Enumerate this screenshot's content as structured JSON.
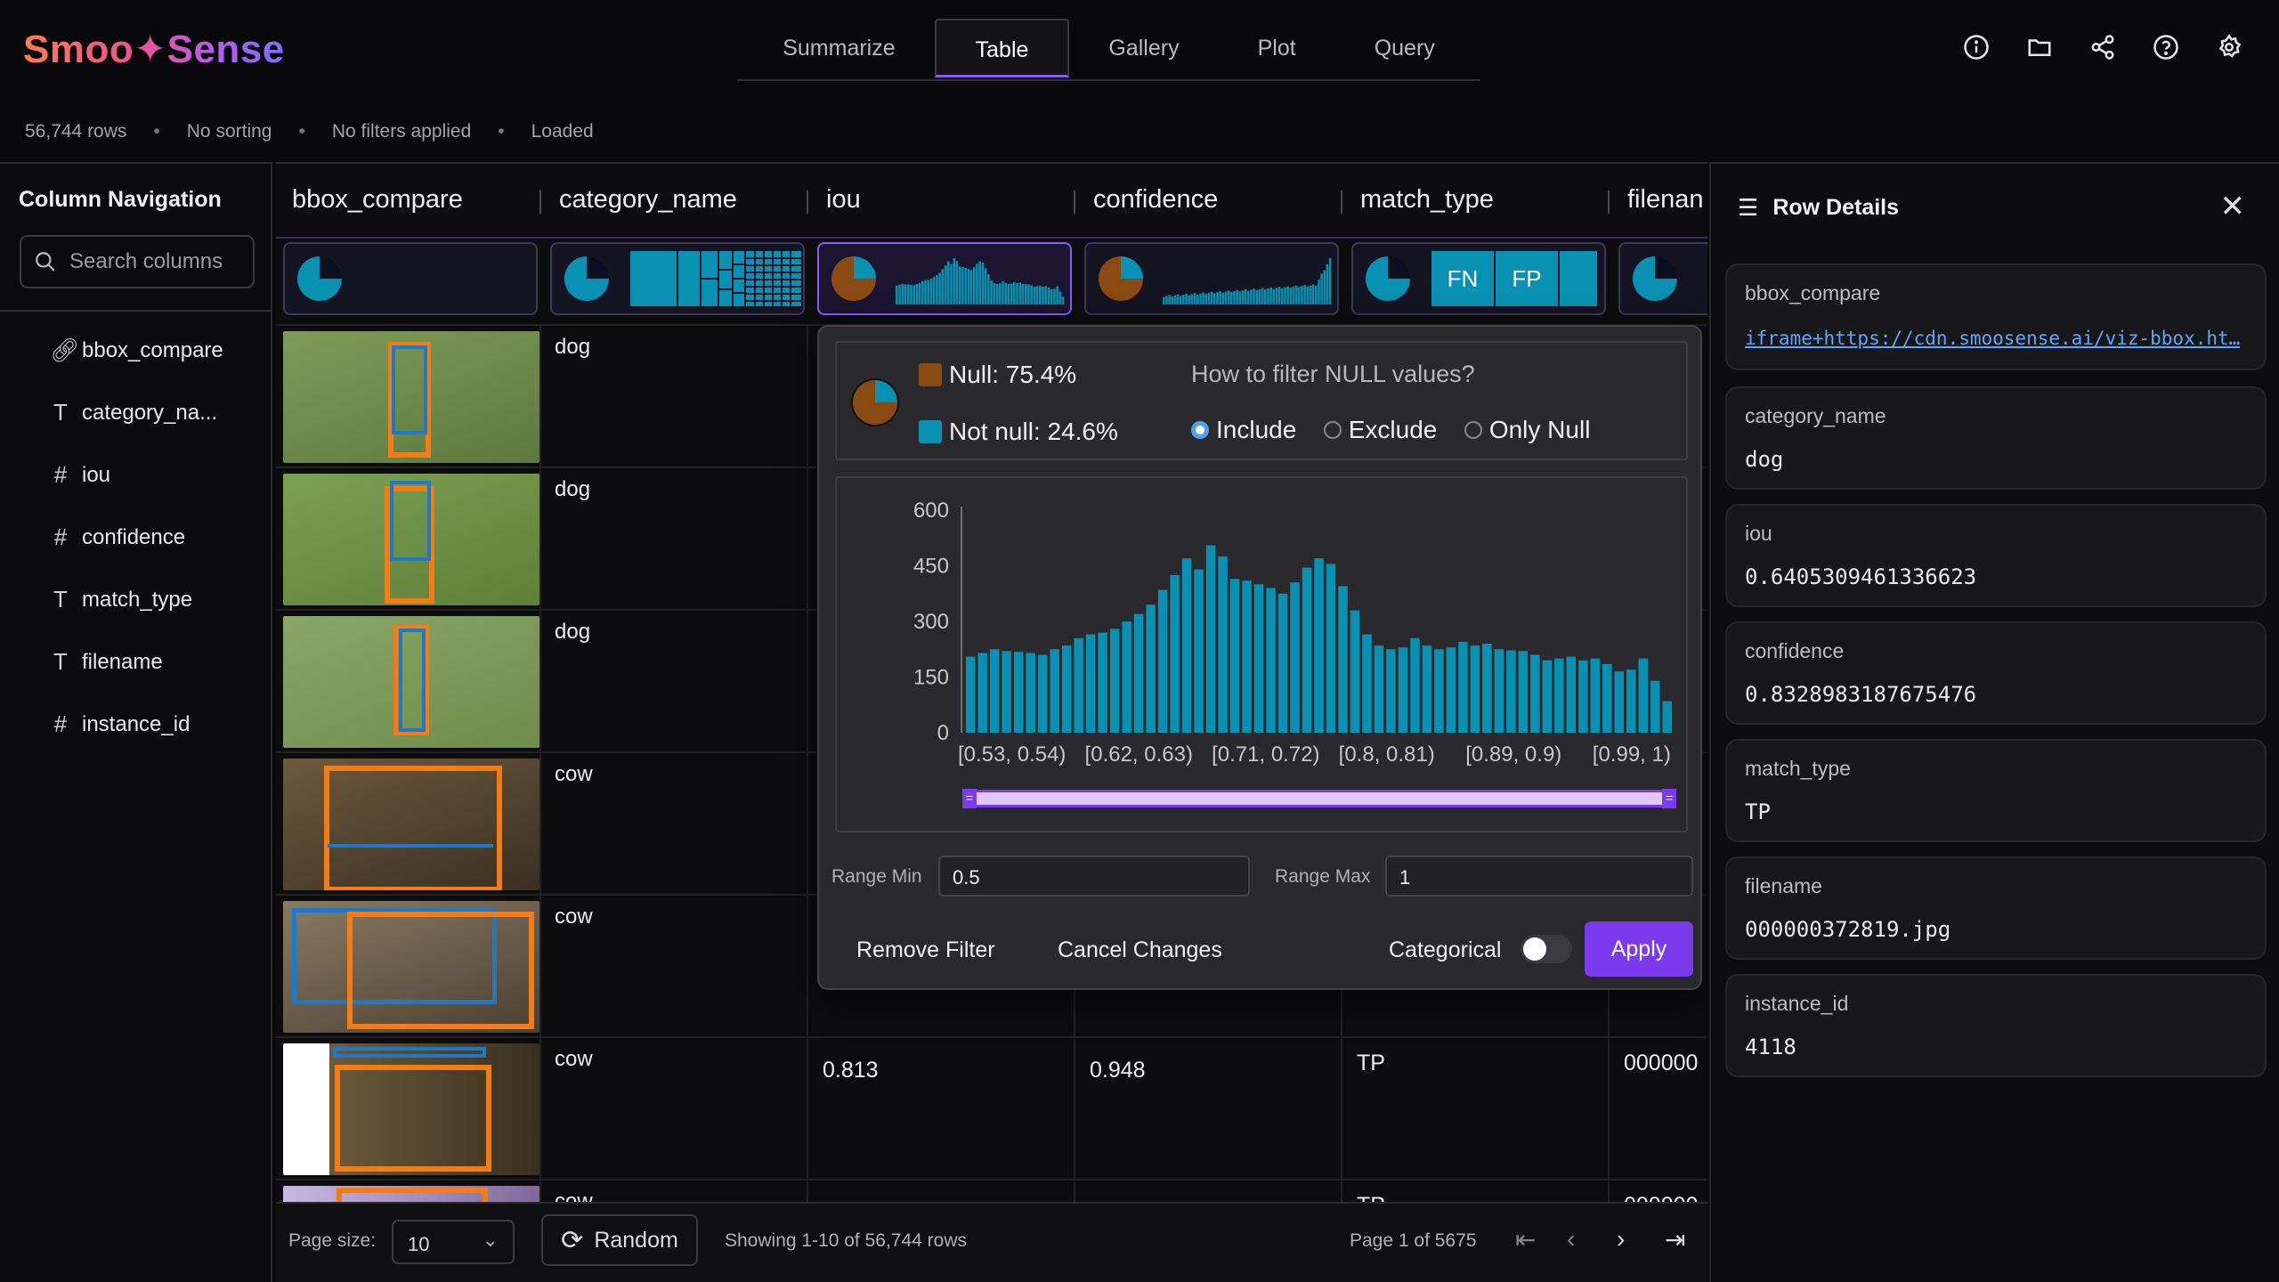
{
  "app": {
    "logo": "Smoo✦Sense"
  },
  "nav": {
    "tabs": [
      {
        "label": "Summarize"
      },
      {
        "label": "Table"
      },
      {
        "label": "Gallery"
      },
      {
        "label": "Plot"
      },
      {
        "label": "Query"
      }
    ],
    "active": "Table"
  },
  "status": {
    "rows": "56,744 rows",
    "sorting": "No sorting",
    "filters": "No filters applied",
    "state": "Loaded"
  },
  "leftnav": {
    "title": "Column Navigation",
    "search_placeholder": "Search columns",
    "columns": [
      {
        "label": "bbox_compare",
        "icon": "link-icon"
      },
      {
        "label": "category_na...",
        "icon": "text-type-icon"
      },
      {
        "label": "iou",
        "icon": "number-type-icon"
      },
      {
        "label": "confidence",
        "icon": "number-type-icon"
      },
      {
        "label": "match_type",
        "icon": "text-type-icon"
      },
      {
        "label": "filename",
        "icon": "text-type-icon"
      },
      {
        "label": "instance_id",
        "icon": "number-type-icon"
      }
    ]
  },
  "table": {
    "headers": [
      "bbox_compare",
      "category_name",
      "iou",
      "confidence",
      "match_type",
      "filenan"
    ],
    "summary_labels": {
      "fn": "FN",
      "fp": "FP"
    },
    "rows": [
      {
        "category": "dog",
        "iou": "",
        "confidence": "",
        "match": "",
        "filename": ""
      },
      {
        "category": "dog",
        "iou": "",
        "confidence": "",
        "match": "",
        "filename": ""
      },
      {
        "category": "dog",
        "iou": "",
        "confidence": "",
        "match": "",
        "filename": ""
      },
      {
        "category": "cow",
        "iou": "",
        "confidence": "",
        "match": "",
        "filename": ""
      },
      {
        "category": "cow",
        "iou": "",
        "confidence": "",
        "match": "",
        "filename": ""
      },
      {
        "category": "cow",
        "iou": "0.813",
        "confidence": "0.948",
        "match": "TP",
        "filename": "000000"
      },
      {
        "category": "cow",
        "iou": "",
        "confidence": "",
        "match": "TP",
        "filename": "000000"
      }
    ]
  },
  "filter_popup": {
    "null_label": "Null: 75.4%",
    "notnull_label": "Not null: 24.6%",
    "null_fraction": 0.754,
    "question": "How to filter NULL values?",
    "options": [
      "Include",
      "Exclude",
      "Only Null"
    ],
    "selected_option": "Include",
    "colors": {
      "null": "#8a4b12",
      "notnull": "#0891b2",
      "bar": "#0891b2",
      "range": "#d8b4fe",
      "range_border": "#7c3aed"
    },
    "chart_data": {
      "type": "bar",
      "y_ticks": [
        "600",
        "450",
        "300",
        "150",
        "0"
      ],
      "ylim": [
        0,
        600
      ],
      "x_tick_labels": [
        "[0.53, 0.54)",
        "[0.62, 0.63)",
        "[0.71, 0.72)",
        "[0.8, 0.81)",
        "[0.89, 0.9)",
        "[0.99, 1)"
      ],
      "values": [
        205,
        215,
        225,
        220,
        218,
        215,
        210,
        225,
        235,
        255,
        265,
        270,
        280,
        300,
        320,
        345,
        385,
        425,
        470,
        440,
        505,
        475,
        415,
        410,
        400,
        390,
        375,
        405,
        445,
        470,
        455,
        395,
        330,
        265,
        235,
        225,
        230,
        255,
        235,
        225,
        230,
        245,
        235,
        240,
        225,
        222,
        220,
        210,
        195,
        200,
        205,
        195,
        200,
        185,
        165,
        170,
        200,
        140,
        85
      ]
    },
    "range_min_label": "Range Min",
    "range_min": "0.5",
    "range_max_label": "Range Max",
    "range_max": "1",
    "remove_label": "Remove Filter",
    "cancel_label": "Cancel Changes",
    "categorical_label": "Categorical",
    "apply_label": "Apply"
  },
  "bottom": {
    "page_size_label": "Page size:",
    "page_size": "10",
    "random_label": "Random",
    "showing": "Showing 1-10 of 56,744 rows",
    "page": "Page 1 of 5675"
  },
  "row_details": {
    "title": "Row Details",
    "fields": [
      {
        "key": "bbox_compare",
        "value": "iframe+https://cdn.smoosense.ai/viz-bbox.ht…"
      },
      {
        "key": "category_name",
        "value": "dog"
      },
      {
        "key": "iou",
        "value": "0.6405309461336623"
      },
      {
        "key": "confidence",
        "value": "0.8328983187675476"
      },
      {
        "key": "match_type",
        "value": "TP"
      },
      {
        "key": "filename",
        "value": "000000372819.jpg"
      },
      {
        "key": "instance_id",
        "value": "4118"
      }
    ]
  }
}
